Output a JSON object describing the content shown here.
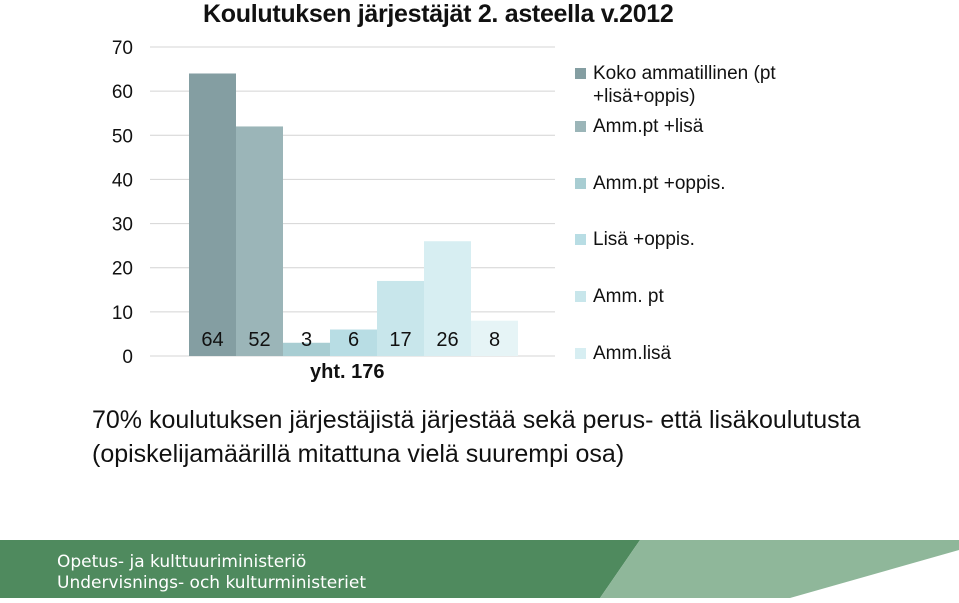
{
  "chart_data": {
    "type": "bar",
    "title": "Koulutuksen järjestäjät 2. asteella v.2012",
    "ylim": [
      0,
      70
    ],
    "yticks": [
      "0",
      "10",
      "20",
      "30",
      "40",
      "50",
      "60",
      "70"
    ],
    "grid": true,
    "legend_position": "right",
    "series": [
      {
        "name": "Koko ammatillinen (pt +lisä+oppis)",
        "value": 64,
        "color": "#849ea2"
      },
      {
        "name": "Amm.pt +lisä",
        "value": 52,
        "color": "#9bb5b8"
      },
      {
        "name": "Amm.pt +oppis.",
        "value": 3,
        "color": "#a8cdd2"
      },
      {
        "name": "Lisä +oppis.",
        "value": 6,
        "color": "#b8dde4"
      },
      {
        "name": "Amm. pt",
        "value": 17,
        "color": "#c8e6eb"
      },
      {
        "name": "Amm.lisä",
        "value": 26,
        "color": "#d7eef2"
      },
      {
        "name": "",
        "value": 8,
        "color": "#e6f4f6"
      }
    ],
    "data_labels": [
      "64",
      "52",
      "3",
      "6",
      "17",
      "26",
      "8"
    ],
    "total_label": "yht. 176"
  },
  "caption": "70% koulutuksen järjestäjistä järjestää sekä perus- että lisäkoulutusta (opiskelijamäärillä mitattuna vielä suurempi osa)",
  "footer": {
    "ministry_fi": "Opetus- ja kulttuuriministeriö",
    "ministry_sv": "Undervisnings- och kulturministeriet",
    "colors": {
      "band_dark": "#4f8a5e",
      "band_light": "#8fb79a"
    }
  }
}
